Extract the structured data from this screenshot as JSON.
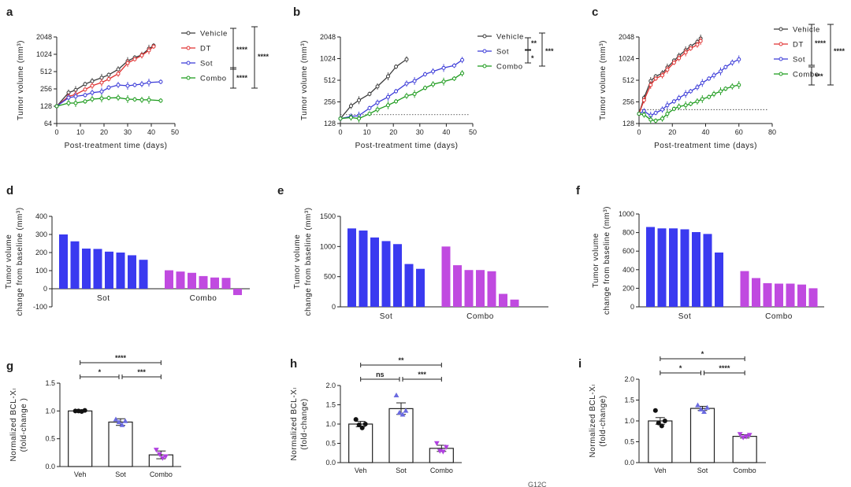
{
  "figure": {
    "caption_fragment": "G12C"
  },
  "colors": {
    "vehicle": "#3b3b3b",
    "dt": "#e03030",
    "sot": "#3b3bd8",
    "combo": "#1a9a1a",
    "bar_sot": "#3a3af0",
    "bar_combo": "#c04ae0",
    "grey": "#808080"
  },
  "chart_data": [
    {
      "id": "a",
      "type": "line",
      "panel_label": "a",
      "xlabel": "Post-treatment time (days)",
      "ylabel": "Tumor volume (mm³)",
      "yscale": "log2",
      "xlim": [
        0,
        50
      ],
      "xticks": [
        0,
        10,
        20,
        30,
        40,
        50
      ],
      "ylim": [
        64,
        2048
      ],
      "yticks": [
        64,
        128,
        256,
        512,
        1024,
        2048
      ],
      "baseline": null,
      "series": [
        {
          "name": "Vehicle",
          "color": "#3b3b3b",
          "x": [
            0,
            5,
            8,
            12,
            15,
            19,
            22,
            26,
            30,
            33,
            36,
            39,
            41
          ],
          "y": [
            128,
            220,
            245,
            310,
            350,
            400,
            450,
            560,
            780,
            900,
            1000,
            1280,
            1450
          ]
        },
        {
          "name": "DT",
          "color": "#e03030",
          "x": [
            0,
            5,
            8,
            12,
            15,
            19,
            22,
            26,
            30,
            33,
            36,
            39,
            41
          ],
          "y": [
            128,
            190,
            205,
            250,
            290,
            330,
            380,
            470,
            720,
            840,
            980,
            1200,
            1400
          ]
        },
        {
          "name": "Sot",
          "color": "#3b3bd8",
          "x": [
            0,
            5,
            8,
            12,
            15,
            19,
            22,
            26,
            30,
            33,
            36,
            39,
            44
          ],
          "y": [
            128,
            180,
            190,
            200,
            220,
            230,
            270,
            300,
            290,
            300,
            310,
            330,
            340
          ]
        },
        {
          "name": "Combo",
          "color": "#1a9a1a",
          "x": [
            0,
            5,
            8,
            12,
            15,
            19,
            22,
            26,
            30,
            33,
            36,
            39,
            44
          ],
          "y": [
            128,
            145,
            145,
            155,
            170,
            175,
            178,
            180,
            170,
            168,
            165,
            165,
            160
          ]
        }
      ],
      "brackets": [
        {
          "label": "****"
        },
        {
          "label": "****"
        },
        {
          "label": "****"
        }
      ]
    },
    {
      "id": "b",
      "type": "line",
      "panel_label": "b",
      "xlabel": "Post-treatment time (days)",
      "ylabel": "Tumor volume (mm³)",
      "yscale": "log2",
      "xlim": [
        0,
        50
      ],
      "xticks": [
        0,
        10,
        20,
        30,
        40,
        50
      ],
      "ylim": [
        128,
        2048
      ],
      "yticks": [
        128,
        256,
        512,
        1024,
        2048
      ],
      "baseline": 170,
      "series": [
        {
          "name": "Vehicle",
          "color": "#3b3b3b",
          "x": [
            0,
            4,
            7,
            11,
            14,
            18,
            21,
            25
          ],
          "y": [
            150,
            225,
            270,
            330,
            420,
            580,
            790,
            1000
          ]
        },
        {
          "name": "Sot",
          "color": "#3b3bd8",
          "x": [
            0,
            4,
            7,
            11,
            14,
            18,
            21,
            25,
            28,
            32,
            35,
            39,
            43,
            46
          ],
          "y": [
            150,
            160,
            165,
            210,
            250,
            300,
            360,
            460,
            500,
            620,
            680,
            760,
            820,
            980
          ]
        },
        {
          "name": "Combo",
          "color": "#1a9a1a",
          "x": [
            0,
            4,
            7,
            11,
            14,
            18,
            21,
            25,
            28,
            32,
            35,
            39,
            43,
            46
          ],
          "y": [
            150,
            155,
            150,
            175,
            200,
            230,
            260,
            310,
            330,
            400,
            450,
            490,
            540,
            640
          ]
        }
      ],
      "brackets": [
        {
          "label": "**"
        },
        {
          "label": "*"
        },
        {
          "label": "***"
        }
      ]
    },
    {
      "id": "c",
      "type": "line",
      "panel_label": "c",
      "xlabel": "Post-treatment time (days)",
      "ylabel": "Tumor volume (mm³)",
      "yscale": "log2",
      "xlim": [
        0,
        80
      ],
      "xticks": [
        0,
        20,
        40,
        60,
        80
      ],
      "ylim": [
        128,
        2048
      ],
      "yticks": [
        128,
        256,
        512,
        1024,
        2048
      ],
      "baseline": 200,
      "series": [
        {
          "name": "Vehicle",
          "color": "#3b3b3b",
          "x": [
            0,
            3,
            7,
            10,
            14,
            17,
            21,
            24,
            28,
            31,
            35,
            37
          ],
          "y": [
            175,
            290,
            500,
            580,
            640,
            770,
            960,
            1120,
            1340,
            1520,
            1750,
            1950
          ]
        },
        {
          "name": "DT",
          "color": "#e03030",
          "x": [
            0,
            3,
            7,
            10,
            14,
            17,
            21,
            24,
            28,
            31,
            35,
            37
          ],
          "y": [
            175,
            270,
            440,
            540,
            600,
            720,
            900,
            1040,
            1250,
            1420,
            1600,
            1800
          ]
        },
        {
          "name": "Sot",
          "color": "#3b3bd8",
          "x": [
            0,
            3,
            7,
            10,
            14,
            17,
            21,
            24,
            28,
            31,
            35,
            38,
            42,
            45,
            49,
            52,
            56,
            60
          ],
          "y": [
            175,
            190,
            165,
            180,
            200,
            230,
            260,
            290,
            330,
            360,
            410,
            470,
            540,
            600,
            680,
            780,
            900,
            1000
          ]
        },
        {
          "name": "Combo",
          "color": "#1a9a1a",
          "x": [
            0,
            3,
            7,
            10,
            14,
            17,
            21,
            24,
            28,
            31,
            35,
            38,
            42,
            45,
            49,
            52,
            56,
            60
          ],
          "y": [
            175,
            170,
            145,
            140,
            150,
            175,
            205,
            220,
            230,
            240,
            260,
            280,
            300,
            330,
            360,
            390,
            420,
            440
          ]
        }
      ],
      "brackets": [
        {
          "label": "****"
        },
        {
          "label": "***"
        },
        {
          "label": "****"
        }
      ]
    },
    {
      "id": "d",
      "type": "bar",
      "panel_label": "d",
      "ylabel_lines": [
        "Tumor volume",
        "change from baseline (mm³)"
      ],
      "ylim": [
        -100,
        400
      ],
      "yticks": [
        -100,
        0,
        100,
        200,
        300,
        400
      ],
      "groups": [
        {
          "name": "Sot",
          "color": "#3a3af0",
          "values": [
            300,
            262,
            222,
            220,
            205,
            200,
            185,
            160
          ]
        },
        {
          "name": "Combo",
          "color": "#c04ae0",
          "values": [
            102,
            95,
            88,
            70,
            62,
            60,
            -35
          ]
        }
      ]
    },
    {
      "id": "e",
      "type": "bar",
      "panel_label": "e",
      "ylabel_lines": [
        "Tumor volume",
        "change from baseline (mm³)"
      ],
      "ylim": [
        0,
        1500
      ],
      "yticks": [
        0,
        500,
        1000,
        1500
      ],
      "groups": [
        {
          "name": "Sot",
          "color": "#3a3af0",
          "values": [
            1300,
            1265,
            1150,
            1090,
            1040,
            710,
            630
          ]
        },
        {
          "name": "Combo",
          "color": "#c04ae0",
          "values": [
            1000,
            690,
            610,
            610,
            590,
            215,
            120
          ]
        }
      ]
    },
    {
      "id": "f",
      "type": "bar",
      "panel_label": "f",
      "ylabel_lines": [
        "Tumor volume",
        "change from baseline (mm³)"
      ],
      "ylim": [
        0,
        1000
      ],
      "yticks": [
        0,
        200,
        400,
        600,
        800,
        1000
      ],
      "groups": [
        {
          "name": "Sot",
          "color": "#3a3af0",
          "values": [
            860,
            845,
            845,
            835,
            805,
            785,
            585
          ]
        },
        {
          "name": "Combo",
          "color": "#c04ae0",
          "values": [
            385,
            310,
            255,
            250,
            250,
            240,
            200
          ]
        }
      ]
    },
    {
      "id": "g",
      "type": "dotbar",
      "panel_label": "g",
      "ylabel_lines": [
        "Normalized BCL-Xₗ",
        "(fold-change )"
      ],
      "ylim": [
        0,
        1.5
      ],
      "yticks": [
        0.0,
        0.5,
        1.0,
        1.5
      ],
      "categories": [
        "Veh",
        "Sot",
        "Combo"
      ],
      "means": [
        1.0,
        0.8,
        0.21
      ],
      "errors": [
        0.02,
        0.06,
        0.07
      ],
      "points": [
        [
          1.0,
          1.0,
          0.99,
          1.01
        ],
        [
          0.85,
          0.8,
          0.75,
          0.82
        ],
        [
          0.3,
          0.22,
          0.15,
          0.18
        ]
      ],
      "markers": [
        "circle",
        "triangle",
        "triangle-down"
      ],
      "comparisons": [
        {
          "pair": [
            0,
            2
          ],
          "label": "****"
        },
        {
          "pair": [
            0,
            1
          ],
          "label": "*"
        },
        {
          "pair": [
            1,
            2
          ],
          "label": "***"
        }
      ]
    },
    {
      "id": "h",
      "type": "dotbar",
      "panel_label": "h",
      "ylabel_lines": [
        "Normalized BCL-Xₗ",
        "(fold-change)"
      ],
      "ylim": [
        0,
        2.0
      ],
      "yticks": [
        0.0,
        0.5,
        1.0,
        1.5,
        2.0
      ],
      "categories": [
        "Veh",
        "Sot",
        "Combo"
      ],
      "means": [
        1.0,
        1.4,
        0.37
      ],
      "errors": [
        0.07,
        0.15,
        0.08
      ],
      "points": [
        [
          1.12,
          0.98,
          0.9,
          1.0
        ],
        [
          1.75,
          1.3,
          1.25,
          1.35
        ],
        [
          0.5,
          0.3,
          0.28,
          0.4
        ]
      ],
      "markers": [
        "circle",
        "triangle",
        "triangle-down"
      ],
      "comparisons": [
        {
          "pair": [
            0,
            2
          ],
          "label": "**"
        },
        {
          "pair": [
            0,
            1
          ],
          "label": "ns"
        },
        {
          "pair": [
            1,
            2
          ],
          "label": "***"
        }
      ]
    },
    {
      "id": "i",
      "type": "dotbar",
      "panel_label": "i",
      "ylabel_lines": [
        "Normalized BCL-Xₗ",
        "(fold-change)"
      ],
      "ylim": [
        0,
        2.0
      ],
      "yticks": [
        0.0,
        0.5,
        1.0,
        1.5,
        2.0
      ],
      "categories": [
        "Veh",
        "Sot",
        "Combo"
      ],
      "means": [
        1.0,
        1.3,
        0.63
      ],
      "errors": [
        0.08,
        0.05,
        0.04
      ],
      "points": [
        [
          1.25,
          0.95,
          0.88,
          1.0
        ],
        [
          1.38,
          1.28,
          1.22,
          1.32
        ],
        [
          0.68,
          0.6,
          0.62,
          0.66
        ]
      ],
      "markers": [
        "circle",
        "triangle",
        "triangle-down"
      ],
      "comparisons": [
        {
          "pair": [
            0,
            2
          ],
          "label": "*"
        },
        {
          "pair": [
            0,
            1
          ],
          "label": "*"
        },
        {
          "pair": [
            1,
            2
          ],
          "label": "****"
        }
      ]
    }
  ]
}
